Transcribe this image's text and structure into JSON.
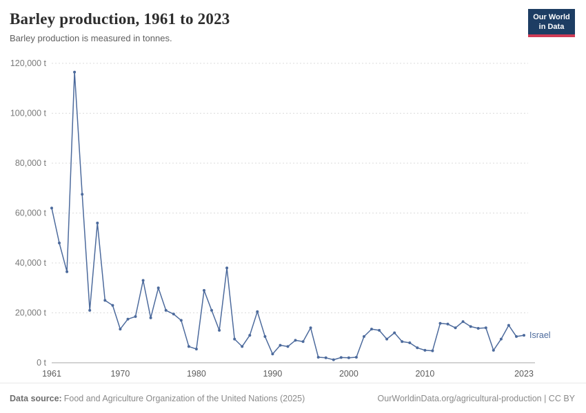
{
  "header": {
    "title": "Barley production, 1961 to 2023",
    "subtitle": "Barley production is measured in tonnes.",
    "logo_line1": "Our World",
    "logo_line2": "in Data",
    "logo_bg_color": "#1d3d63",
    "logo_accent_color": "#cf3b55"
  },
  "footer": {
    "source_label": "Data source:",
    "source_text": "Food and Agriculture Organization of the United Nations (2025)",
    "rights": "OurWorldinData.org/agricultural-production | CC BY"
  },
  "chart_data": {
    "type": "line",
    "title": "Barley production, 1961 to 2023",
    "ylabel": "tonnes",
    "xlim": [
      1961,
      2023
    ],
    "ylim": [
      0,
      120000
    ],
    "grid": true,
    "legend_position": "end-of-line label",
    "yticks": [
      {
        "value": 0,
        "label": "0 t"
      },
      {
        "value": 20000,
        "label": "20,000 t"
      },
      {
        "value": 40000,
        "label": "40,000 t"
      },
      {
        "value": 60000,
        "label": "60,000 t"
      },
      {
        "value": 80000,
        "label": "80,000 t"
      },
      {
        "value": 100000,
        "label": "100,000 t"
      },
      {
        "value": 120000,
        "label": "120,000 t"
      }
    ],
    "xticks": [
      {
        "value": 1961,
        "label": "1961"
      },
      {
        "value": 1970,
        "label": "1970"
      },
      {
        "value": 1980,
        "label": "1980"
      },
      {
        "value": 1990,
        "label": "1990"
      },
      {
        "value": 2000,
        "label": "2000"
      },
      {
        "value": 2010,
        "label": "2010"
      },
      {
        "value": 2023,
        "label": "2023"
      }
    ],
    "series": [
      {
        "name": "Israel",
        "color": "#4c6a9c",
        "x": [
          1961,
          1962,
          1963,
          1964,
          1965,
          1966,
          1967,
          1968,
          1969,
          1970,
          1971,
          1972,
          1973,
          1974,
          1975,
          1976,
          1977,
          1978,
          1979,
          1980,
          1981,
          1982,
          1983,
          1984,
          1985,
          1986,
          1987,
          1988,
          1989,
          1990,
          1991,
          1992,
          1993,
          1994,
          1995,
          1996,
          1997,
          1998,
          1999,
          2000,
          2001,
          2002,
          2003,
          2004,
          2005,
          2006,
          2007,
          2008,
          2009,
          2010,
          2011,
          2012,
          2013,
          2014,
          2015,
          2016,
          2017,
          2018,
          2019,
          2020,
          2021,
          2022,
          2023
        ],
        "values": [
          62000,
          48000,
          36500,
          116500,
          67500,
          21000,
          56000,
          25000,
          23000,
          13500,
          17500,
          18500,
          33000,
          18000,
          30000,
          21000,
          19500,
          17000,
          6500,
          5500,
          29000,
          21000,
          13000,
          38000,
          9500,
          6500,
          11000,
          20500,
          10500,
          3500,
          7000,
          6500,
          9000,
          8500,
          14000,
          2200,
          2000,
          1200,
          2100,
          2000,
          2200,
          10500,
          13500,
          13000,
          9500,
          12000,
          8500,
          8000,
          6000,
          5000,
          4800,
          15800,
          15500,
          14000,
          16500,
          14500,
          13800,
          14000,
          5000,
          9500,
          15000,
          10500,
          11000
        ]
      }
    ]
  }
}
